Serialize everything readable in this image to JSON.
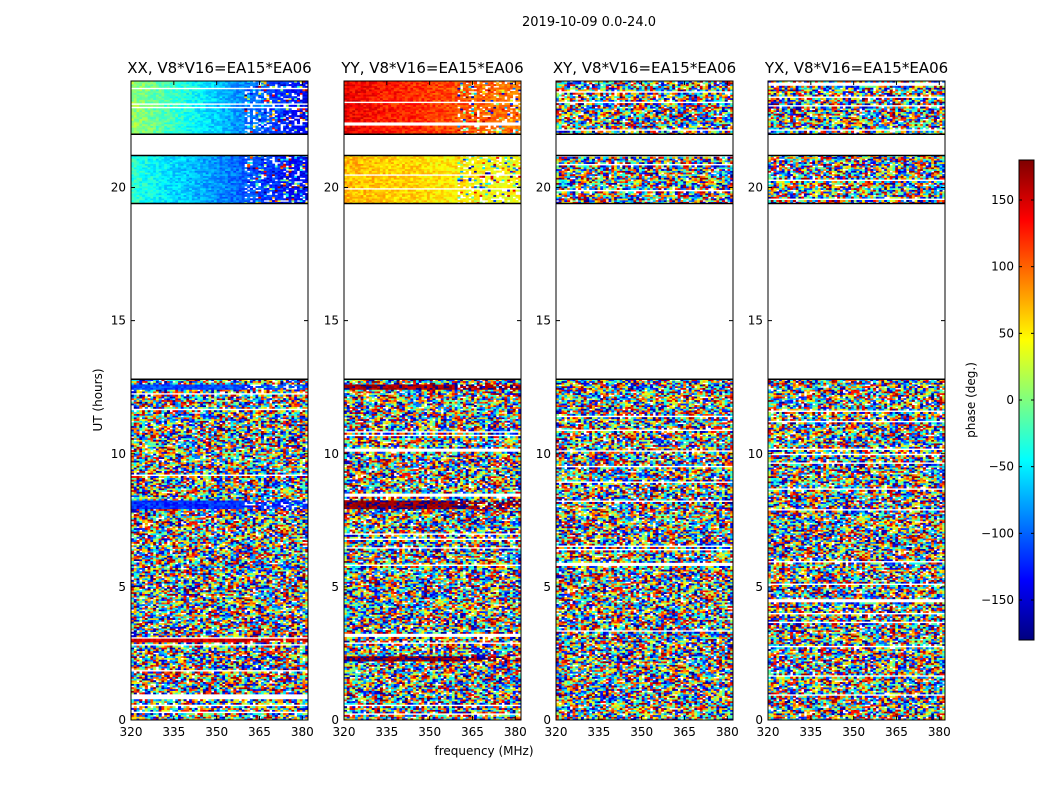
{
  "suptitle": "2019-10-09 0.0-24.0",
  "chart_data": {
    "type": "heatmap",
    "xlabel": "frequency (MHz)",
    "ylabel": "UT (hours)",
    "xlim": [
      320,
      382
    ],
    "ylim": [
      0,
      24
    ],
    "x_ticks": [
      320,
      335,
      350,
      365,
      380
    ],
    "y_ticks": [
      0,
      5,
      10,
      15,
      20
    ],
    "grid": false,
    "colorbar": {
      "label": "phase (deg.)",
      "range": [
        -180,
        180
      ],
      "ticks": [
        -150,
        -100,
        -50,
        0,
        50,
        100,
        150
      ],
      "tick_labels": [
        "−150",
        "−100",
        "−50",
        "0",
        "50",
        "100",
        "150"
      ],
      "colormap": "jet",
      "colors": [
        "#00007f",
        "#0000ff",
        "#007fff",
        "#00ffff",
        "#7fff7f",
        "#ffff00",
        "#ff7f00",
        "#ff0000",
        "#7f0000"
      ]
    },
    "data_blocks_ut": [
      [
        0.0,
        12.8
      ],
      [
        19.4,
        21.2
      ],
      [
        22.0,
        24.0
      ]
    ],
    "panels": [
      {
        "title": "XX, V8*V16=EA15*EA06",
        "description": "phase vs frequency and time",
        "coherent_bands": [
          {
            "t0": 22.0,
            "t1": 24.0,
            "phase_start": 10,
            "phase_end": -140
          },
          {
            "t0": 19.4,
            "t1": 21.2,
            "phase_start": -30,
            "phase_end": -140
          },
          {
            "t0": 12.4,
            "t1": 12.6,
            "phase_start": -110,
            "phase_end": -110
          },
          {
            "t0": 7.9,
            "t1": 8.2,
            "phase_start": -120,
            "phase_end": -120
          },
          {
            "t0": 2.9,
            "t1": 3.1,
            "phase_start": 150,
            "phase_end": 150
          }
        ]
      },
      {
        "title": "YY, V8*V16=EA15*EA06",
        "description": "phase vs frequency and time",
        "coherent_bands": [
          {
            "t0": 22.0,
            "t1": 24.0,
            "phase_start": 140,
            "phase_end": 90
          },
          {
            "t0": 19.4,
            "t1": 21.2,
            "phase_start": 70,
            "phase_end": 40
          },
          {
            "t0": 12.4,
            "t1": 12.6,
            "phase_start": 170,
            "phase_end": 170
          },
          {
            "t0": 7.9,
            "t1": 8.2,
            "phase_start": 175,
            "phase_end": 175
          },
          {
            "t0": 2.2,
            "t1": 2.4,
            "phase_start": 175,
            "phase_end": 175
          }
        ]
      },
      {
        "title": "XY, V8*V16=EA15*EA06",
        "description": "phase vs frequency and time",
        "coherent_bands": []
      },
      {
        "title": "YX, V8*V16=EA15*EA06",
        "description": "phase vs frequency and time",
        "coherent_bands": []
      }
    ]
  }
}
